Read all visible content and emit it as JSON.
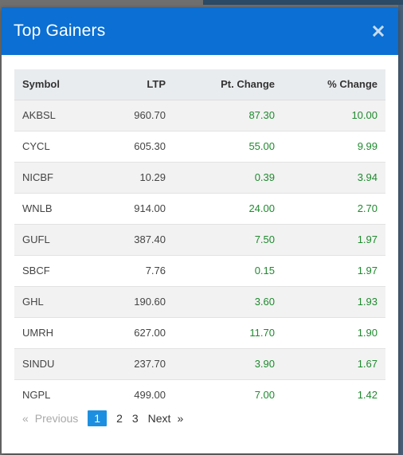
{
  "modal": {
    "title": "Top Gainers"
  },
  "table": {
    "headers": {
      "symbol": "Symbol",
      "ltp": "LTP",
      "pt_change": "Pt. Change",
      "pct_change": "% Change"
    },
    "rows": [
      {
        "symbol": "AKBSL",
        "ltp": "960.70",
        "pt_change": "87.30",
        "pct_change": "10.00"
      },
      {
        "symbol": "CYCL",
        "ltp": "605.30",
        "pt_change": "55.00",
        "pct_change": "9.99"
      },
      {
        "symbol": "NICBF",
        "ltp": "10.29",
        "pt_change": "0.39",
        "pct_change": "3.94"
      },
      {
        "symbol": "WNLB",
        "ltp": "914.00",
        "pt_change": "24.00",
        "pct_change": "2.70"
      },
      {
        "symbol": "GUFL",
        "ltp": "387.40",
        "pt_change": "7.50",
        "pct_change": "1.97"
      },
      {
        "symbol": "SBCF",
        "ltp": "7.76",
        "pt_change": "0.15",
        "pct_change": "1.97"
      },
      {
        "symbol": "GHL",
        "ltp": "190.60",
        "pt_change": "3.60",
        "pct_change": "1.93"
      },
      {
        "symbol": "UMRH",
        "ltp": "627.00",
        "pt_change": "11.70",
        "pct_change": "1.90"
      },
      {
        "symbol": "SINDU",
        "ltp": "237.70",
        "pt_change": "3.90",
        "pct_change": "1.67"
      },
      {
        "symbol": "NGPL",
        "ltp": "499.00",
        "pt_change": "7.00",
        "pct_change": "1.42"
      }
    ]
  },
  "pagination": {
    "prev_arrow": "«",
    "previous": "Previous",
    "pages": [
      "1",
      "2",
      "3"
    ],
    "active_page": "1",
    "next": "Next",
    "next_arrow": "»"
  },
  "colors": {
    "header_bg": "#0b6fd3",
    "positive": "#1e8a2e",
    "active_page": "#1d8fe0"
  }
}
